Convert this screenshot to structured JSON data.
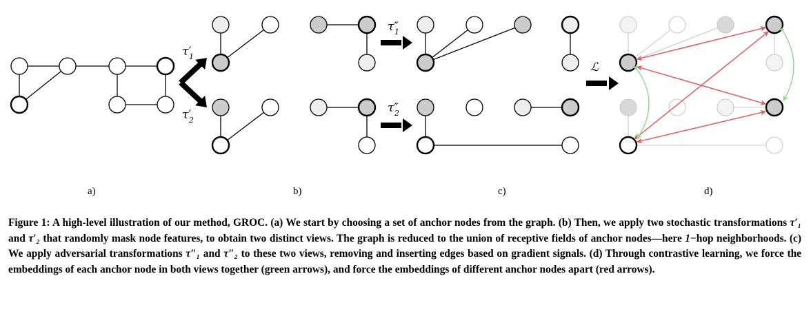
{
  "figure": {
    "sub_labels": [
      "a)",
      "b)",
      "c)",
      "d)"
    ],
    "math_labels": {
      "tau1_prime": "τ′",
      "tau2_prime": "τ′",
      "tau1_dprime": "τ″",
      "tau2_dprime": "τ″",
      "sub1": "1",
      "sub2": "2",
      "loss": "ℒ"
    },
    "colors": {
      "gray_fill": "#cccccc",
      "light_fill": "#eeeeee",
      "faded_stroke": "#c8c8c8",
      "red_arrow": "#e06060",
      "green_arrow": "#90d890"
    }
  },
  "caption": {
    "label": "Figure 1:",
    "segments": [
      {
        "type": "text",
        "value": " A high-level illustration of our method, GROC. (a) We start by choosing a set of anchor nodes from the graph. (b) Then, we apply two stochastic transformations "
      },
      {
        "type": "math",
        "value": "τ′₁"
      },
      {
        "type": "text",
        "value": " and "
      },
      {
        "type": "math",
        "value": "τ′₂"
      },
      {
        "type": "text",
        "value": " that randomly mask node features, to obtain two distinct views. The graph is reduced to the union of receptive fields of anchor nodes—here "
      },
      {
        "type": "math",
        "value": "1"
      },
      {
        "type": "text",
        "value": "−hop neighborhoods. (c) We apply adversarial transformations "
      },
      {
        "type": "math",
        "value": "τ″₁"
      },
      {
        "type": "text",
        "value": " and "
      },
      {
        "type": "math",
        "value": "τ″₂"
      },
      {
        "type": "text",
        "value": " to these two views, removing and inserting edges based on gradient signals. (d) Through contrastive learning, we force the embeddings of each anchor node in both views together (green arrows), and force the embeddings of different anchor nodes apart (red arrows)."
      }
    ]
  }
}
